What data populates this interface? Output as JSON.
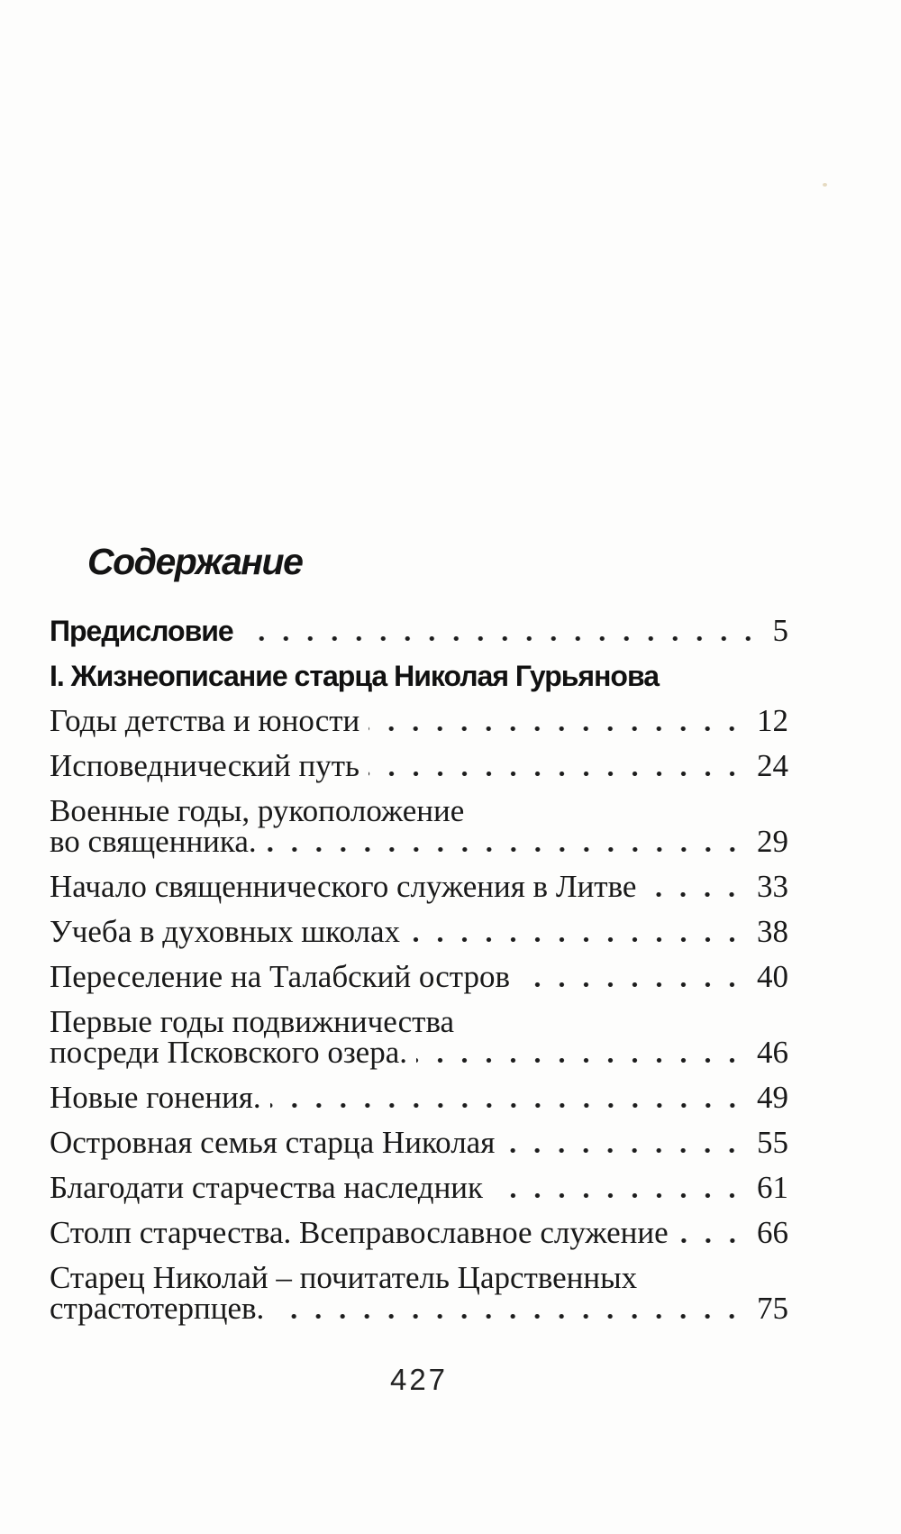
{
  "toc": {
    "title": "Содержание",
    "entries": [
      {
        "text": "Предисловие",
        "page": "5",
        "bold": true
      },
      {
        "text": "I. Жизнеописание старца Николая Гурьянова",
        "bold": true
      },
      {
        "text": "Годы детства и юности",
        "page": "12"
      },
      {
        "text": "Исповеднический путь",
        "page": "24"
      },
      {
        "pre": "Военные годы, рукоположение",
        "text": "во священника.",
        "page": "29"
      },
      {
        "text": "Начало священнического служения в Литве",
        "page": "33"
      },
      {
        "text": "Учеба в духовных школах",
        "page": "38"
      },
      {
        "text": "Переселение на Талабский остров",
        "page": "40"
      },
      {
        "pre": "Первые годы подвижничества",
        "text": "посреди Псковского озера.",
        "page": "46"
      },
      {
        "text": "Новые гонения.",
        "page": "49"
      },
      {
        "text": "Островная семья старца Николая",
        "page": "55"
      },
      {
        "text": "Благодати старчества наследник",
        "page": "61"
      },
      {
        "text": "Столп старчества. Всеправославное служение",
        "page": "66"
      },
      {
        "pre": "Старец Николай – почитатель Царственных",
        "text": "страстотерпцев.",
        "page": "75"
      }
    ]
  },
  "footer": {
    "page_number": "427"
  },
  "colors": {
    "paper": "#fdfdfc",
    "ink": "#1a1a1a"
  }
}
